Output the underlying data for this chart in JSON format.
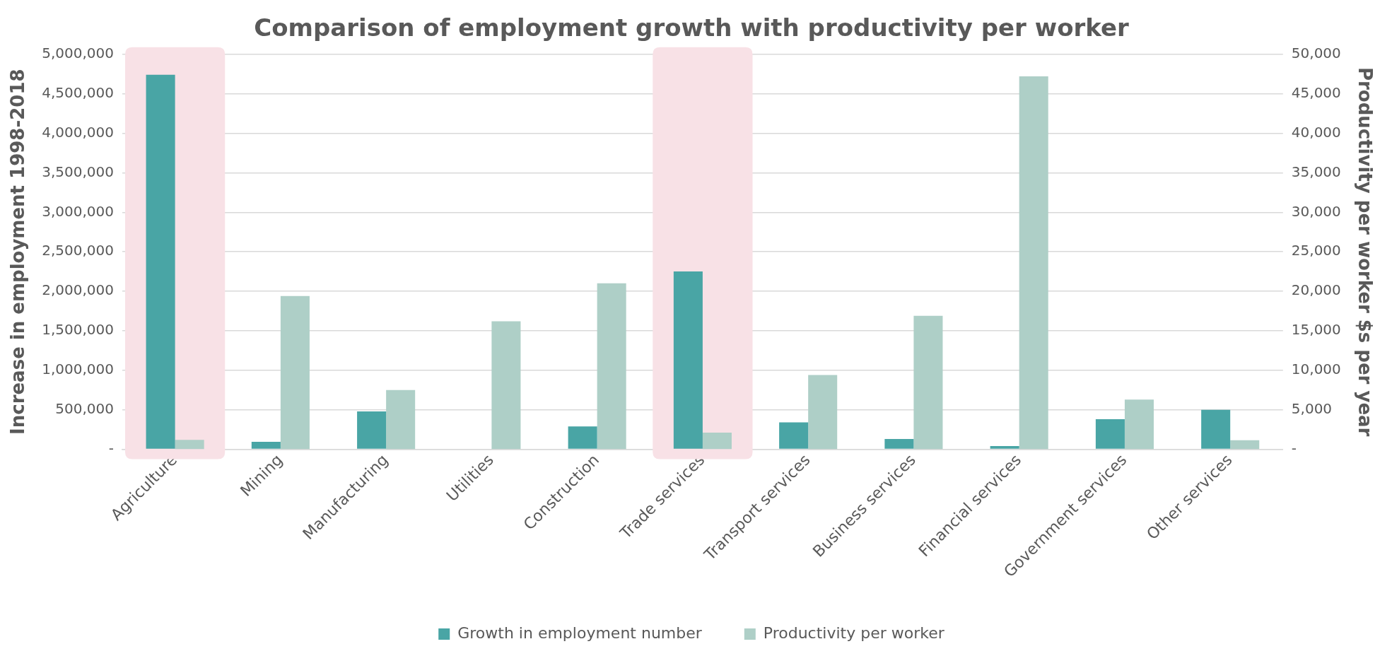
{
  "chart_data": {
    "type": "bar",
    "title": "Comparison of employment growth with productivity per worker",
    "ylabel": "Increase in employment 1998-2018",
    "y2label": "Productivity per worker $s per year",
    "categories": [
      "Agriculture",
      "Mining",
      "Manufacturing",
      "Utilities",
      "Construction",
      "Trade services",
      "Transport services",
      "Business services",
      "Financial services",
      "Government services",
      "Other services"
    ],
    "series": [
      {
        "name": "Growth in employment number",
        "color": "#49a5a5",
        "values": [
          4740000,
          95000,
          480000,
          0,
          290000,
          2250000,
          340000,
          130000,
          40000,
          380000,
          500000
        ]
      },
      {
        "name": "Productivity per worker",
        "color": "#aecfc7",
        "axis": "y2",
        "values": [
          1200,
          19400,
          7500,
          16200,
          21000,
          2100,
          9400,
          16900,
          47200,
          6300,
          1150
        ]
      }
    ],
    "ylim": [
      0,
      5000000
    ],
    "yticks": [
      {
        "value": 0,
        "label": "-"
      },
      {
        "value": 500000,
        "label": "500,000"
      },
      {
        "value": 1000000,
        "label": "1,000,000"
      },
      {
        "value": 1500000,
        "label": "1,500,000"
      },
      {
        "value": 2000000,
        "label": "2,000,000"
      },
      {
        "value": 2500000,
        "label": "2,500,000"
      },
      {
        "value": 3000000,
        "label": "3,000,000"
      },
      {
        "value": 3500000,
        "label": "3,500,000"
      },
      {
        "value": 4000000,
        "label": "4,000,000"
      },
      {
        "value": 4500000,
        "label": "4,500,000"
      },
      {
        "value": 5000000,
        "label": "5,000,000"
      }
    ],
    "y2lim": [
      0,
      50000
    ],
    "y2ticks": [
      {
        "value": 0,
        "label": "-"
      },
      {
        "value": 5000,
        "label": "5,000"
      },
      {
        "value": 10000,
        "label": "10,000"
      },
      {
        "value": 15000,
        "label": "15,000"
      },
      {
        "value": 20000,
        "label": "20,000"
      },
      {
        "value": 25000,
        "label": "25,000"
      },
      {
        "value": 30000,
        "label": "30,000"
      },
      {
        "value": 35000,
        "label": "35,000"
      },
      {
        "value": 40000,
        "label": "40,000"
      },
      {
        "value": 45000,
        "label": "45,000"
      },
      {
        "value": 50000,
        "label": "50,000"
      }
    ],
    "bands": [
      {
        "axis": "x",
        "from": "Agriculture",
        "to": "Agriculture",
        "color": "#f8e1e6"
      },
      {
        "axis": "x",
        "from": "Trade services",
        "to": "Trade services",
        "color": "#f8e1e6"
      }
    ],
    "grid": "y",
    "legend": "bottom"
  }
}
